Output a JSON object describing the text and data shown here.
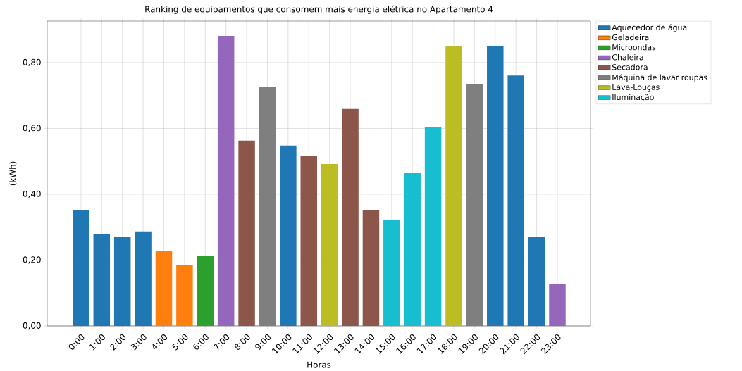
{
  "chart_data": {
    "type": "bar",
    "title": "Ranking de equipamentos que consomem mais energia elétrica no Apartamento 4",
    "xlabel": "Horas",
    "ylabel": "(kWh)",
    "categories": [
      "0:00",
      "1:00",
      "2:00",
      "3:00",
      "4:00",
      "5:00",
      "6:00",
      "7:00",
      "8:00",
      "9:00",
      "10:00",
      "11:00",
      "12:00",
      "13:00",
      "14:00",
      "15:00",
      "16:00",
      "17:00",
      "18:00",
      "19:00",
      "20:00",
      "21:00",
      "22:00",
      "23:00"
    ],
    "series": [
      {
        "name": "Aquecedor de água",
        "color": "#1f77b4",
        "values": [
          0.353,
          0.28,
          0.27,
          0.287,
          null,
          null,
          null,
          null,
          null,
          null,
          0.548,
          null,
          null,
          null,
          null,
          null,
          null,
          null,
          null,
          null,
          0.851,
          0.761,
          0.27,
          null
        ]
      },
      {
        "name": "Geladeira",
        "color": "#ff7f0e",
        "values": [
          null,
          null,
          null,
          null,
          0.227,
          0.186,
          null,
          null,
          null,
          null,
          null,
          null,
          null,
          null,
          null,
          null,
          null,
          null,
          null,
          null,
          null,
          null,
          null,
          null
        ]
      },
      {
        "name": "Microondas",
        "color": "#2ca02c",
        "values": [
          null,
          null,
          null,
          null,
          null,
          null,
          0.212,
          null,
          null,
          null,
          null,
          null,
          null,
          null,
          null,
          null,
          null,
          null,
          null,
          null,
          null,
          null,
          null,
          null
        ]
      },
      {
        "name": "Chaleira",
        "color": "#9467bd",
        "values": [
          null,
          null,
          null,
          null,
          null,
          null,
          null,
          0.881,
          null,
          null,
          null,
          null,
          null,
          null,
          null,
          null,
          null,
          null,
          null,
          null,
          null,
          null,
          null,
          0.128
        ]
      },
      {
        "name": "Secadora",
        "color": "#8c564b",
        "values": [
          null,
          null,
          null,
          null,
          null,
          null,
          null,
          null,
          0.563,
          null,
          null,
          0.516,
          null,
          0.659,
          0.351,
          null,
          null,
          null,
          null,
          null,
          null,
          null,
          null,
          null
        ]
      },
      {
        "name": "Máquina de lavar roupas",
        "color": "#7f7f7f",
        "values": [
          null,
          null,
          null,
          null,
          null,
          null,
          null,
          null,
          null,
          0.725,
          null,
          null,
          null,
          null,
          null,
          null,
          null,
          null,
          null,
          0.734,
          null,
          null,
          null,
          null
        ]
      },
      {
        "name": "Lava-Louças",
        "color": "#bcbd22",
        "values": [
          null,
          null,
          null,
          null,
          null,
          null,
          null,
          null,
          null,
          null,
          null,
          null,
          0.492,
          null,
          null,
          null,
          null,
          null,
          0.851,
          null,
          null,
          null,
          null,
          null
        ]
      },
      {
        "name": "Iluminação",
        "color": "#17becf",
        "values": [
          null,
          null,
          null,
          null,
          null,
          null,
          null,
          null,
          null,
          null,
          null,
          null,
          null,
          null,
          null,
          0.321,
          0.464,
          0.605,
          null,
          null,
          null,
          null,
          null,
          null
        ]
      }
    ],
    "ylim": [
      0,
      0.926
    ],
    "yticks": [
      {
        "value": 0,
        "label": "0,00"
      },
      {
        "value": 0.2,
        "label": "0,20"
      },
      {
        "value": 0.4,
        "label": "0,40"
      },
      {
        "value": 0.6,
        "label": "0,60"
      },
      {
        "value": 0.8,
        "label": "0,80"
      }
    ],
    "grid": true,
    "legend": "top right"
  }
}
